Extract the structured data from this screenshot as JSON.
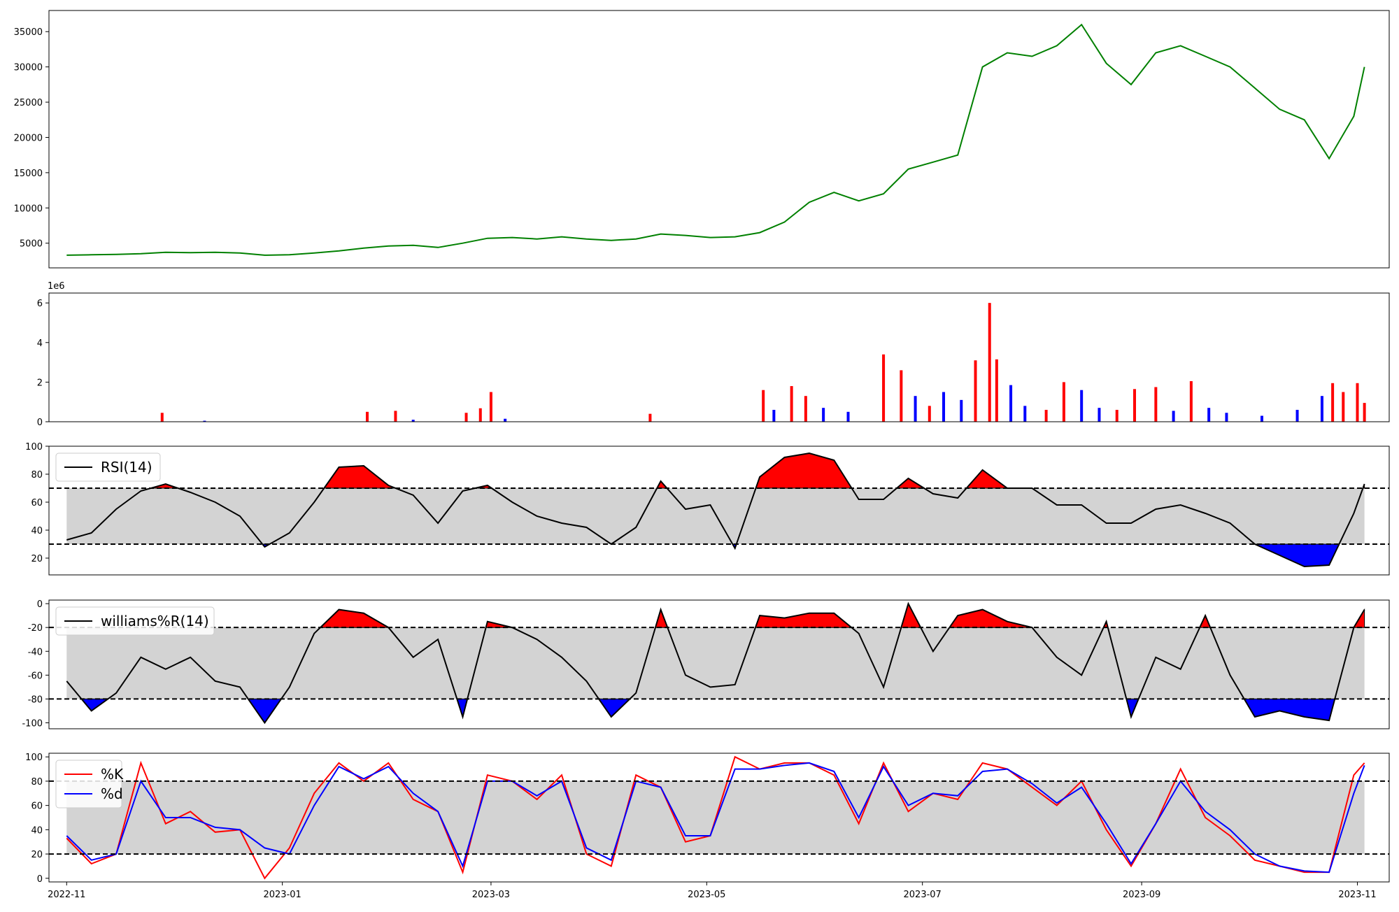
{
  "chart_data": [
    {
      "type": "line",
      "x_range": [
        "2022-10-27",
        "2023-11-10"
      ],
      "ylim": [
        1500,
        38000
      ],
      "yticks": [
        5000,
        10000,
        15000,
        20000,
        25000,
        30000,
        35000
      ],
      "line_color": "#008000",
      "series": [
        {
          "x": [
            "2022-11-01",
            "2022-11-08",
            "2022-11-15",
            "2022-11-22",
            "2022-11-29",
            "2022-12-06",
            "2022-12-13",
            "2022-12-20",
            "2022-12-27",
            "2023-01-03",
            "2023-01-10",
            "2023-01-17",
            "2023-01-24",
            "2023-01-31",
            "2023-02-07",
            "2023-02-14",
            "2023-02-21",
            "2023-02-28",
            "2023-03-07",
            "2023-03-14",
            "2023-03-21",
            "2023-03-28",
            "2023-04-04",
            "2023-04-11",
            "2023-04-18",
            "2023-04-25",
            "2023-05-02",
            "2023-05-09",
            "2023-05-16",
            "2023-05-23",
            "2023-05-30",
            "2023-06-06",
            "2023-06-13",
            "2023-06-20",
            "2023-06-27",
            "2023-07-04",
            "2023-07-11",
            "2023-07-18",
            "2023-07-25",
            "2023-08-01",
            "2023-08-08",
            "2023-08-15",
            "2023-08-22",
            "2023-08-29",
            "2023-09-05",
            "2023-09-12",
            "2023-09-19",
            "2023-09-26",
            "2023-10-03",
            "2023-10-10",
            "2023-10-17",
            "2023-10-24",
            "2023-10-31",
            "2023-11-03"
          ],
          "values": [
            3300,
            3350,
            3400,
            3500,
            3700,
            3650,
            3700,
            3600,
            3300,
            3350,
            3600,
            3900,
            4300,
            4600,
            4700,
            4400,
            5000,
            5700,
            5800,
            5600,
            5900,
            5600,
            5400,
            5600,
            6300,
            6100,
            5800,
            5900,
            6500,
            8000,
            10800,
            12200,
            11000,
            12000,
            15500,
            16500,
            17500,
            30000,
            32000,
            31500,
            33000,
            36000,
            30500,
            27500,
            32000,
            33000,
            31500,
            30000,
            27000,
            24000,
            22500,
            17000,
            23000,
            30000
          ]
        }
      ]
    },
    {
      "type": "bar",
      "ylim": [
        0,
        6500000
      ],
      "yticks": [
        0,
        2,
        4,
        6
      ],
      "offset_label": "1e6",
      "colors": {
        "up": "#ff0000",
        "down": "#0000ff"
      },
      "series": [
        {
          "x": [
            "2022-11-28",
            "2022-12-10",
            "2023-01-25",
            "2023-02-02",
            "2023-02-07",
            "2023-02-22",
            "2023-02-26",
            "2023-03-01",
            "2023-03-05",
            "2023-04-15",
            "2023-05-17",
            "2023-05-20",
            "2023-05-25",
            "2023-05-29",
            "2023-06-03",
            "2023-06-10",
            "2023-06-20",
            "2023-06-25",
            "2023-06-29",
            "2023-07-03",
            "2023-07-07",
            "2023-07-12",
            "2023-07-16",
            "2023-07-20",
            "2023-07-22",
            "2023-07-26",
            "2023-07-30",
            "2023-08-05",
            "2023-08-10",
            "2023-08-15",
            "2023-08-20",
            "2023-08-25",
            "2023-08-30",
            "2023-09-05",
            "2023-09-10",
            "2023-09-15",
            "2023-09-20",
            "2023-09-25",
            "2023-10-05",
            "2023-10-15",
            "2023-10-22",
            "2023-10-25",
            "2023-10-28",
            "2023-11-01",
            "2023-11-03"
          ],
          "values": [
            450000,
            50000,
            500000,
            550000,
            100000,
            450000,
            680000,
            1500000,
            150000,
            400000,
            1600000,
            600000,
            1800000,
            1300000,
            700000,
            500000,
            3400000,
            2600000,
            1300000,
            800000,
            1500000,
            1100000,
            3100000,
            6000000,
            3150000,
            1850000,
            800000,
            600000,
            2000000,
            1600000,
            700000,
            600000,
            1650000,
            1750000,
            550000,
            2050000,
            700000,
            450000,
            300000,
            600000,
            1300000,
            1950000,
            1500000,
            1950000,
            950000
          ],
          "direction": [
            "up",
            "down",
            "up",
            "up",
            "down",
            "up",
            "up",
            "up",
            "down",
            "up",
            "up",
            "down",
            "up",
            "up",
            "down",
            "down",
            "up",
            "up",
            "down",
            "up",
            "down",
            "down",
            "up",
            "up",
            "up",
            "down",
            "down",
            "up",
            "up",
            "down",
            "down",
            "up",
            "up",
            "up",
            "down",
            "up",
            "down",
            "down",
            "down",
            "down",
            "down",
            "up",
            "up",
            "up",
            "up"
          ]
        }
      ]
    },
    {
      "type": "line",
      "legend": [
        "RSI(14)"
      ],
      "ylim": [
        8,
        100
      ],
      "yticks": [
        20,
        40,
        60,
        80,
        100
      ],
      "thresholds": [
        30,
        70
      ],
      "fill_colors": {
        "band": "#d3d3d3",
        "above": "#ff0000",
        "below": "#0000ff"
      },
      "series": [
        {
          "name": "RSI(14)",
          "x": [
            "2022-11-01",
            "2022-11-08",
            "2022-11-15",
            "2022-11-22",
            "2022-11-29",
            "2022-12-06",
            "2022-12-13",
            "2022-12-20",
            "2022-12-27",
            "2023-01-03",
            "2023-01-10",
            "2023-01-17",
            "2023-01-24",
            "2023-01-31",
            "2023-02-07",
            "2023-02-14",
            "2023-02-21",
            "2023-02-28",
            "2023-03-07",
            "2023-03-14",
            "2023-03-21",
            "2023-03-28",
            "2023-04-04",
            "2023-04-11",
            "2023-04-18",
            "2023-04-25",
            "2023-05-02",
            "2023-05-09",
            "2023-05-16",
            "2023-05-23",
            "2023-05-30",
            "2023-06-06",
            "2023-06-13",
            "2023-06-20",
            "2023-06-27",
            "2023-07-04",
            "2023-07-11",
            "2023-07-18",
            "2023-07-25",
            "2023-08-01",
            "2023-08-08",
            "2023-08-15",
            "2023-08-22",
            "2023-08-29",
            "2023-09-05",
            "2023-09-12",
            "2023-09-19",
            "2023-09-26",
            "2023-10-03",
            "2023-10-10",
            "2023-10-17",
            "2023-10-24",
            "2023-10-31",
            "2023-11-03"
          ],
          "values": [
            33,
            38,
            55,
            68,
            73,
            67,
            60,
            50,
            28,
            38,
            60,
            85,
            86,
            72,
            65,
            45,
            68,
            72,
            60,
            50,
            45,
            42,
            30,
            42,
            75,
            55,
            58,
            27,
            78,
            92,
            95,
            90,
            62,
            62,
            77,
            66,
            63,
            83,
            70,
            70,
            58,
            58,
            45,
            45,
            55,
            58,
            52,
            45,
            30,
            22,
            14,
            15,
            52,
            73
          ]
        }
      ]
    },
    {
      "type": "line",
      "legend": [
        "williams%R(14)"
      ],
      "ylim": [
        -105,
        3
      ],
      "yticks": [
        -100,
        -80,
        -60,
        -40,
        -20,
        0
      ],
      "thresholds": [
        -80,
        -20
      ],
      "fill_colors": {
        "band": "#d3d3d3",
        "above": "#ff0000",
        "below": "#0000ff"
      },
      "series": [
        {
          "name": "williams%R(14)",
          "x": [
            "2022-11-01",
            "2022-11-08",
            "2022-11-15",
            "2022-11-22",
            "2022-11-29",
            "2022-12-06",
            "2022-12-13",
            "2022-12-20",
            "2022-12-27",
            "2023-01-03",
            "2023-01-10",
            "2023-01-17",
            "2023-01-24",
            "2023-01-31",
            "2023-02-07",
            "2023-02-14",
            "2023-02-21",
            "2023-02-28",
            "2023-03-07",
            "2023-03-14",
            "2023-03-21",
            "2023-03-28",
            "2023-04-04",
            "2023-04-11",
            "2023-04-18",
            "2023-04-25",
            "2023-05-02",
            "2023-05-09",
            "2023-05-16",
            "2023-05-23",
            "2023-05-30",
            "2023-06-06",
            "2023-06-13",
            "2023-06-20",
            "2023-06-27",
            "2023-07-04",
            "2023-07-11",
            "2023-07-18",
            "2023-07-25",
            "2023-08-01",
            "2023-08-08",
            "2023-08-15",
            "2023-08-22",
            "2023-08-29",
            "2023-09-05",
            "2023-09-12",
            "2023-09-19",
            "2023-09-26",
            "2023-10-03",
            "2023-10-10",
            "2023-10-17",
            "2023-10-24",
            "2023-10-31",
            "2023-11-03"
          ],
          "values": [
            -65,
            -90,
            -75,
            -45,
            -55,
            -45,
            -65,
            -70,
            -100,
            -70,
            -25,
            -5,
            -8,
            -20,
            -45,
            -30,
            -95,
            -15,
            -20,
            -30,
            -45,
            -65,
            -95,
            -75,
            -5,
            -60,
            -70,
            -68,
            -10,
            -12,
            -8,
            -8,
            -25,
            -70,
            0,
            -40,
            -10,
            -5,
            -15,
            -20,
            -45,
            -60,
            -15,
            -95,
            -45,
            -55,
            -10,
            -60,
            -95,
            -90,
            -95,
            -98,
            -20,
            -5
          ]
        }
      ]
    },
    {
      "type": "line",
      "legend": [
        "%K",
        "%d"
      ],
      "ylim": [
        -3,
        103
      ],
      "yticks": [
        0,
        20,
        40,
        60,
        80,
        100
      ],
      "thresholds": [
        20,
        80
      ],
      "fill_colors": {
        "band": "#d3d3d3"
      },
      "xticks": [
        "2022-11",
        "2023-01",
        "2023-03",
        "2023-05",
        "2023-07",
        "2023-09",
        "2023-11"
      ],
      "series": [
        {
          "name": "%K",
          "color": "#ff0000",
          "x": [
            "2022-11-01",
            "2022-11-08",
            "2022-11-15",
            "2022-11-22",
            "2022-11-29",
            "2022-12-06",
            "2022-12-13",
            "2022-12-20",
            "2022-12-27",
            "2023-01-03",
            "2023-01-10",
            "2023-01-17",
            "2023-01-24",
            "2023-01-31",
            "2023-02-07",
            "2023-02-14",
            "2023-02-21",
            "2023-02-28",
            "2023-03-07",
            "2023-03-14",
            "2023-03-21",
            "2023-03-28",
            "2023-04-04",
            "2023-04-11",
            "2023-04-18",
            "2023-04-25",
            "2023-05-02",
            "2023-05-09",
            "2023-05-16",
            "2023-05-23",
            "2023-05-30",
            "2023-06-06",
            "2023-06-13",
            "2023-06-20",
            "2023-06-27",
            "2023-07-04",
            "2023-07-11",
            "2023-07-18",
            "2023-07-25",
            "2023-08-01",
            "2023-08-08",
            "2023-08-15",
            "2023-08-22",
            "2023-08-29",
            "2023-09-05",
            "2023-09-12",
            "2023-09-19",
            "2023-09-26",
            "2023-10-03",
            "2023-10-10",
            "2023-10-17",
            "2023-10-24",
            "2023-10-31",
            "2023-11-03"
          ],
          "values": [
            33,
            12,
            20,
            95,
            45,
            55,
            38,
            40,
            0,
            25,
            70,
            95,
            80,
            95,
            65,
            55,
            5,
            85,
            80,
            65,
            85,
            20,
            10,
            85,
            75,
            30,
            35,
            100,
            90,
            95,
            95,
            85,
            45,
            95,
            55,
            70,
            65,
            95,
            90,
            75,
            60,
            80,
            40,
            10,
            45,
            90,
            50,
            35,
            15,
            10,
            5,
            5,
            85,
            95
          ]
        },
        {
          "name": "%d",
          "color": "#0000ff",
          "x": [
            "2022-11-01",
            "2022-11-08",
            "2022-11-15",
            "2022-11-22",
            "2022-11-29",
            "2022-12-06",
            "2022-12-13",
            "2022-12-20",
            "2022-12-27",
            "2023-01-03",
            "2023-01-10",
            "2023-01-17",
            "2023-01-24",
            "2023-01-31",
            "2023-02-07",
            "2023-02-14",
            "2023-02-21",
            "2023-02-28",
            "2023-03-07",
            "2023-03-14",
            "2023-03-21",
            "2023-03-28",
            "2023-04-04",
            "2023-04-11",
            "2023-04-18",
            "2023-04-25",
            "2023-05-02",
            "2023-05-09",
            "2023-05-16",
            "2023-05-23",
            "2023-05-30",
            "2023-06-06",
            "2023-06-13",
            "2023-06-20",
            "2023-06-27",
            "2023-07-04",
            "2023-07-11",
            "2023-07-18",
            "2023-07-25",
            "2023-08-01",
            "2023-08-08",
            "2023-08-15",
            "2023-08-22",
            "2023-08-29",
            "2023-09-05",
            "2023-09-12",
            "2023-09-19",
            "2023-09-26",
            "2023-10-03",
            "2023-10-10",
            "2023-10-17",
            "2023-10-24",
            "2023-10-31",
            "2023-11-03"
          ],
          "values": [
            35,
            15,
            20,
            80,
            50,
            50,
            42,
            40,
            25,
            20,
            60,
            92,
            82,
            92,
            70,
            55,
            10,
            80,
            80,
            68,
            80,
            25,
            15,
            80,
            75,
            35,
            35,
            90,
            90,
            93,
            95,
            88,
            50,
            92,
            60,
            70,
            68,
            88,
            90,
            78,
            62,
            75,
            45,
            12,
            45,
            80,
            55,
            40,
            20,
            10,
            6,
            5,
            70,
            93
          ]
        }
      ]
    }
  ]
}
